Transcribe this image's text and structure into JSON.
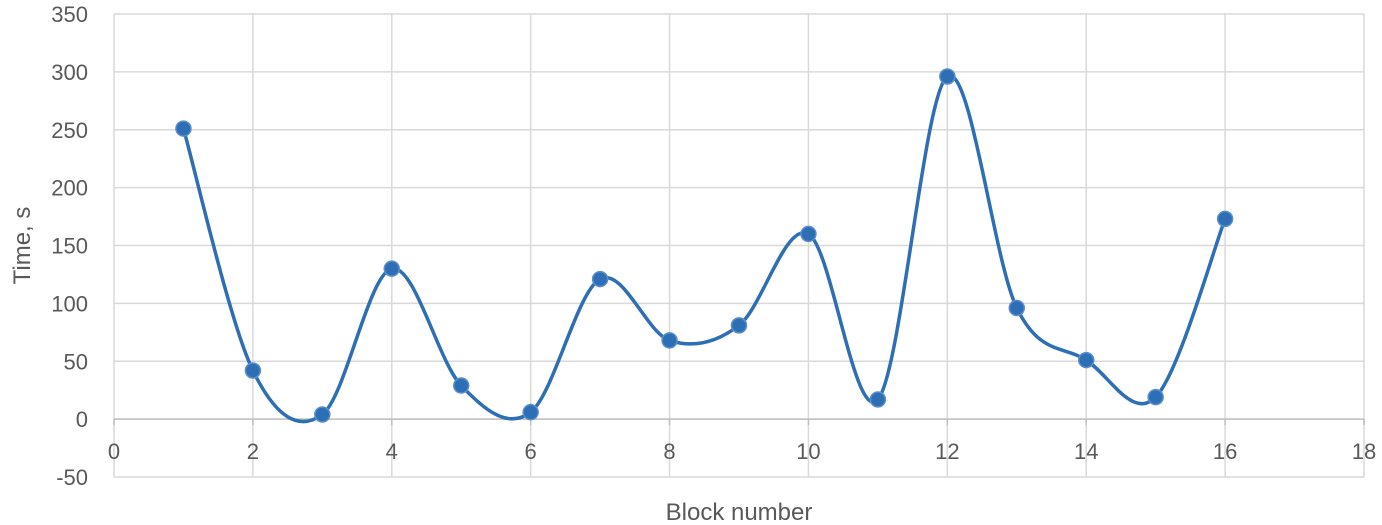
{
  "chart_data": {
    "type": "line",
    "smooth": true,
    "xlabel": "Block number",
    "ylabel": "Time, s",
    "xlim": [
      0,
      18
    ],
    "ylim": [
      -50,
      350
    ],
    "xticks": [
      0,
      2,
      4,
      6,
      8,
      10,
      12,
      14,
      16,
      18
    ],
    "yticks": [
      -50,
      0,
      50,
      100,
      150,
      200,
      250,
      300,
      350
    ],
    "grid": true,
    "legend": "none",
    "series": [
      {
        "color": "#2e6eb5",
        "x": [
          1,
          2,
          3,
          4,
          5,
          6,
          7,
          8,
          9,
          10,
          11,
          12,
          13,
          14,
          15,
          16
        ],
        "y": [
          251,
          42,
          4,
          130,
          29,
          6,
          121,
          68,
          81,
          160,
          17,
          296,
          96,
          51,
          19,
          173
        ]
      }
    ]
  }
}
